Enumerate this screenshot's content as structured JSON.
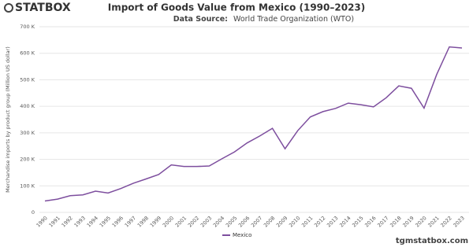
{
  "brand": "STATBOX",
  "footer": "tgmstatbox.com",
  "chart_data": {
    "type": "line",
    "title": "Import of Goods Value from Mexico (1990–2023)",
    "source_label": "Data Source:",
    "source": "World Trade Organization (WTO)",
    "y_label": "Merchandise imports by product group (Million US dollar)",
    "categories": [
      "1990",
      "1991",
      "1992",
      "1993",
      "1994",
      "1995",
      "1996",
      "1997",
      "1998",
      "1999",
      "2000",
      "2001",
      "2002",
      "2003",
      "2004",
      "2005",
      "2006",
      "2007",
      "2008",
      "2009",
      "2010",
      "2011",
      "2012",
      "2013",
      "2014",
      "2015",
      "2016",
      "2017",
      "2018",
      "2019",
      "2020",
      "2021",
      "2022",
      "2023"
    ],
    "series": [
      {
        "name": "Mexico",
        "color": "#7d4e9e",
        "values": [
          43000,
          50000,
          63000,
          66000,
          80000,
          73000,
          90000,
          110000,
          126000,
          143000,
          179000,
          173000,
          173000,
          175000,
          202000,
          228000,
          262000,
          288000,
          317000,
          240000,
          308000,
          360000,
          380000,
          392000,
          412000,
          406000,
          398000,
          432000,
          477000,
          468000,
          393000,
          520000,
          624000,
          620000
        ]
      }
    ],
    "ylim": [
      0,
      700000
    ],
    "yticks": [
      {
        "value": 0,
        "label": "0"
      },
      {
        "value": 100000,
        "label": "100 K"
      },
      {
        "value": 200000,
        "label": "200 K"
      },
      {
        "value": 300000,
        "label": "300 K"
      },
      {
        "value": 400000,
        "label": "400 K"
      },
      {
        "value": 500000,
        "label": "500 K"
      },
      {
        "value": 600000,
        "label": "600 K"
      },
      {
        "value": 700000,
        "label": "700 K"
      }
    ],
    "grid": true
  }
}
